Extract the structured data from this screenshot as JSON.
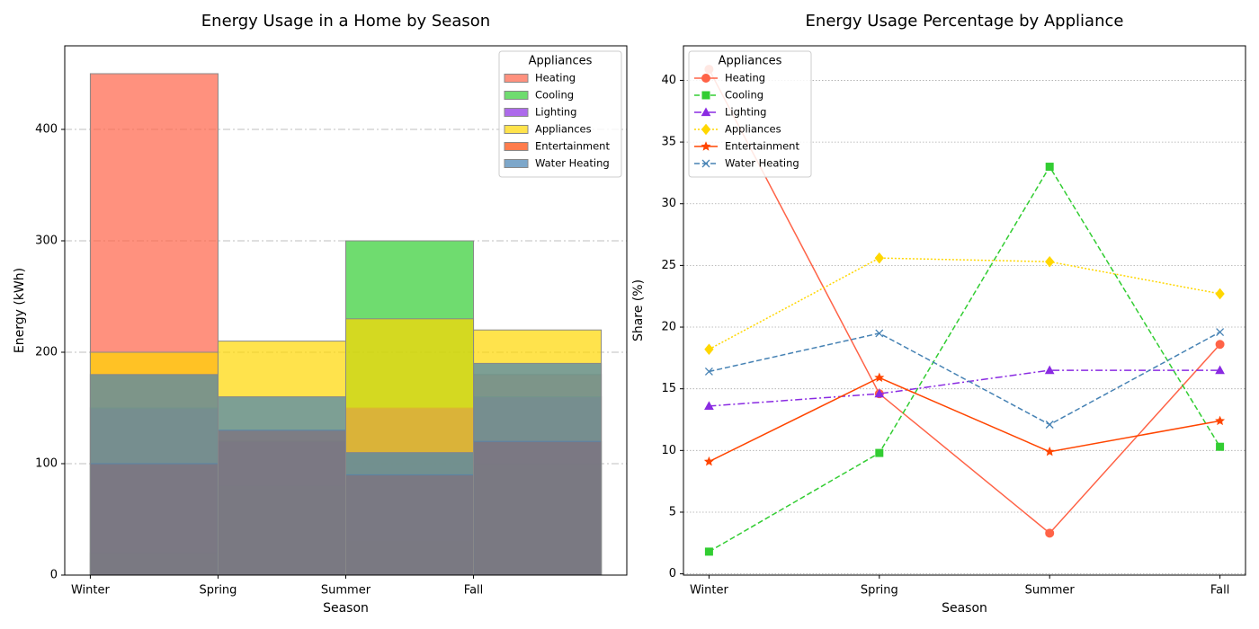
{
  "chart_data": [
    {
      "type": "bar",
      "title": "Energy Usage in a Home by Season",
      "xlabel": "Season",
      "ylabel": "Energy (kWh)",
      "categories": [
        "Winter",
        "Spring",
        "Summer",
        "Fall"
      ],
      "ylim": [
        0,
        475
      ],
      "yticks": [
        0,
        100,
        200,
        300,
        400
      ],
      "grid": true,
      "legend_title": "Appliances",
      "legend": "upper right",
      "series": [
        {
          "name": "Heating",
          "color": "#ff6347",
          "values": [
            450,
            120,
            30,
            180
          ]
        },
        {
          "name": "Cooling",
          "color": "#32cd32",
          "values": [
            20,
            80,
            300,
            100
          ]
        },
        {
          "name": "Lighting",
          "color": "#8a2be2",
          "values": [
            150,
            120,
            150,
            160
          ]
        },
        {
          "name": "Appliances",
          "color": "#ffd700",
          "values": [
            200,
            210,
            230,
            220
          ]
        },
        {
          "name": "Entertainment",
          "color": "#ff4500",
          "values": [
            100,
            130,
            90,
            120
          ]
        },
        {
          "name": "Water Heating",
          "color": "#4682b4",
          "values": [
            180,
            160,
            110,
            190
          ]
        }
      ]
    },
    {
      "type": "line",
      "title": "Energy Usage Percentage by Appliance",
      "xlabel": "Season",
      "ylabel": "Share (%)",
      "categories": [
        "Winter",
        "Spring",
        "Summer",
        "Fall"
      ],
      "ylim": [
        -0.1,
        42.8
      ],
      "yticks": [
        0,
        5,
        10,
        15,
        20,
        25,
        30,
        35,
        40
      ],
      "grid": true,
      "legend_title": "Appliances",
      "legend": "upper left",
      "series": [
        {
          "name": "Heating",
          "color": "#ff6347",
          "linestyle": "solid",
          "marker": "circle",
          "values": [
            40.9,
            14.6,
            3.3,
            18.6
          ]
        },
        {
          "name": "Cooling",
          "color": "#32cd32",
          "linestyle": "dashed",
          "marker": "square",
          "values": [
            1.8,
            9.8,
            33.0,
            10.3
          ]
        },
        {
          "name": "Lighting",
          "color": "#8a2be2",
          "linestyle": "dashdot",
          "marker": "triangle",
          "values": [
            13.6,
            14.6,
            16.5,
            16.5
          ]
        },
        {
          "name": "Appliances",
          "color": "#ffd700",
          "linestyle": "dotted",
          "marker": "diamond",
          "values": [
            18.2,
            25.6,
            25.3,
            22.7
          ]
        },
        {
          "name": "Entertainment",
          "color": "#ff4500",
          "linestyle": "solid",
          "marker": "star",
          "values": [
            9.1,
            15.9,
            9.9,
            12.4
          ]
        },
        {
          "name": "Water Heating",
          "color": "#4682b4",
          "linestyle": "dashed",
          "marker": "x",
          "values": [
            16.4,
            19.5,
            12.1,
            19.6
          ]
        }
      ]
    }
  ]
}
